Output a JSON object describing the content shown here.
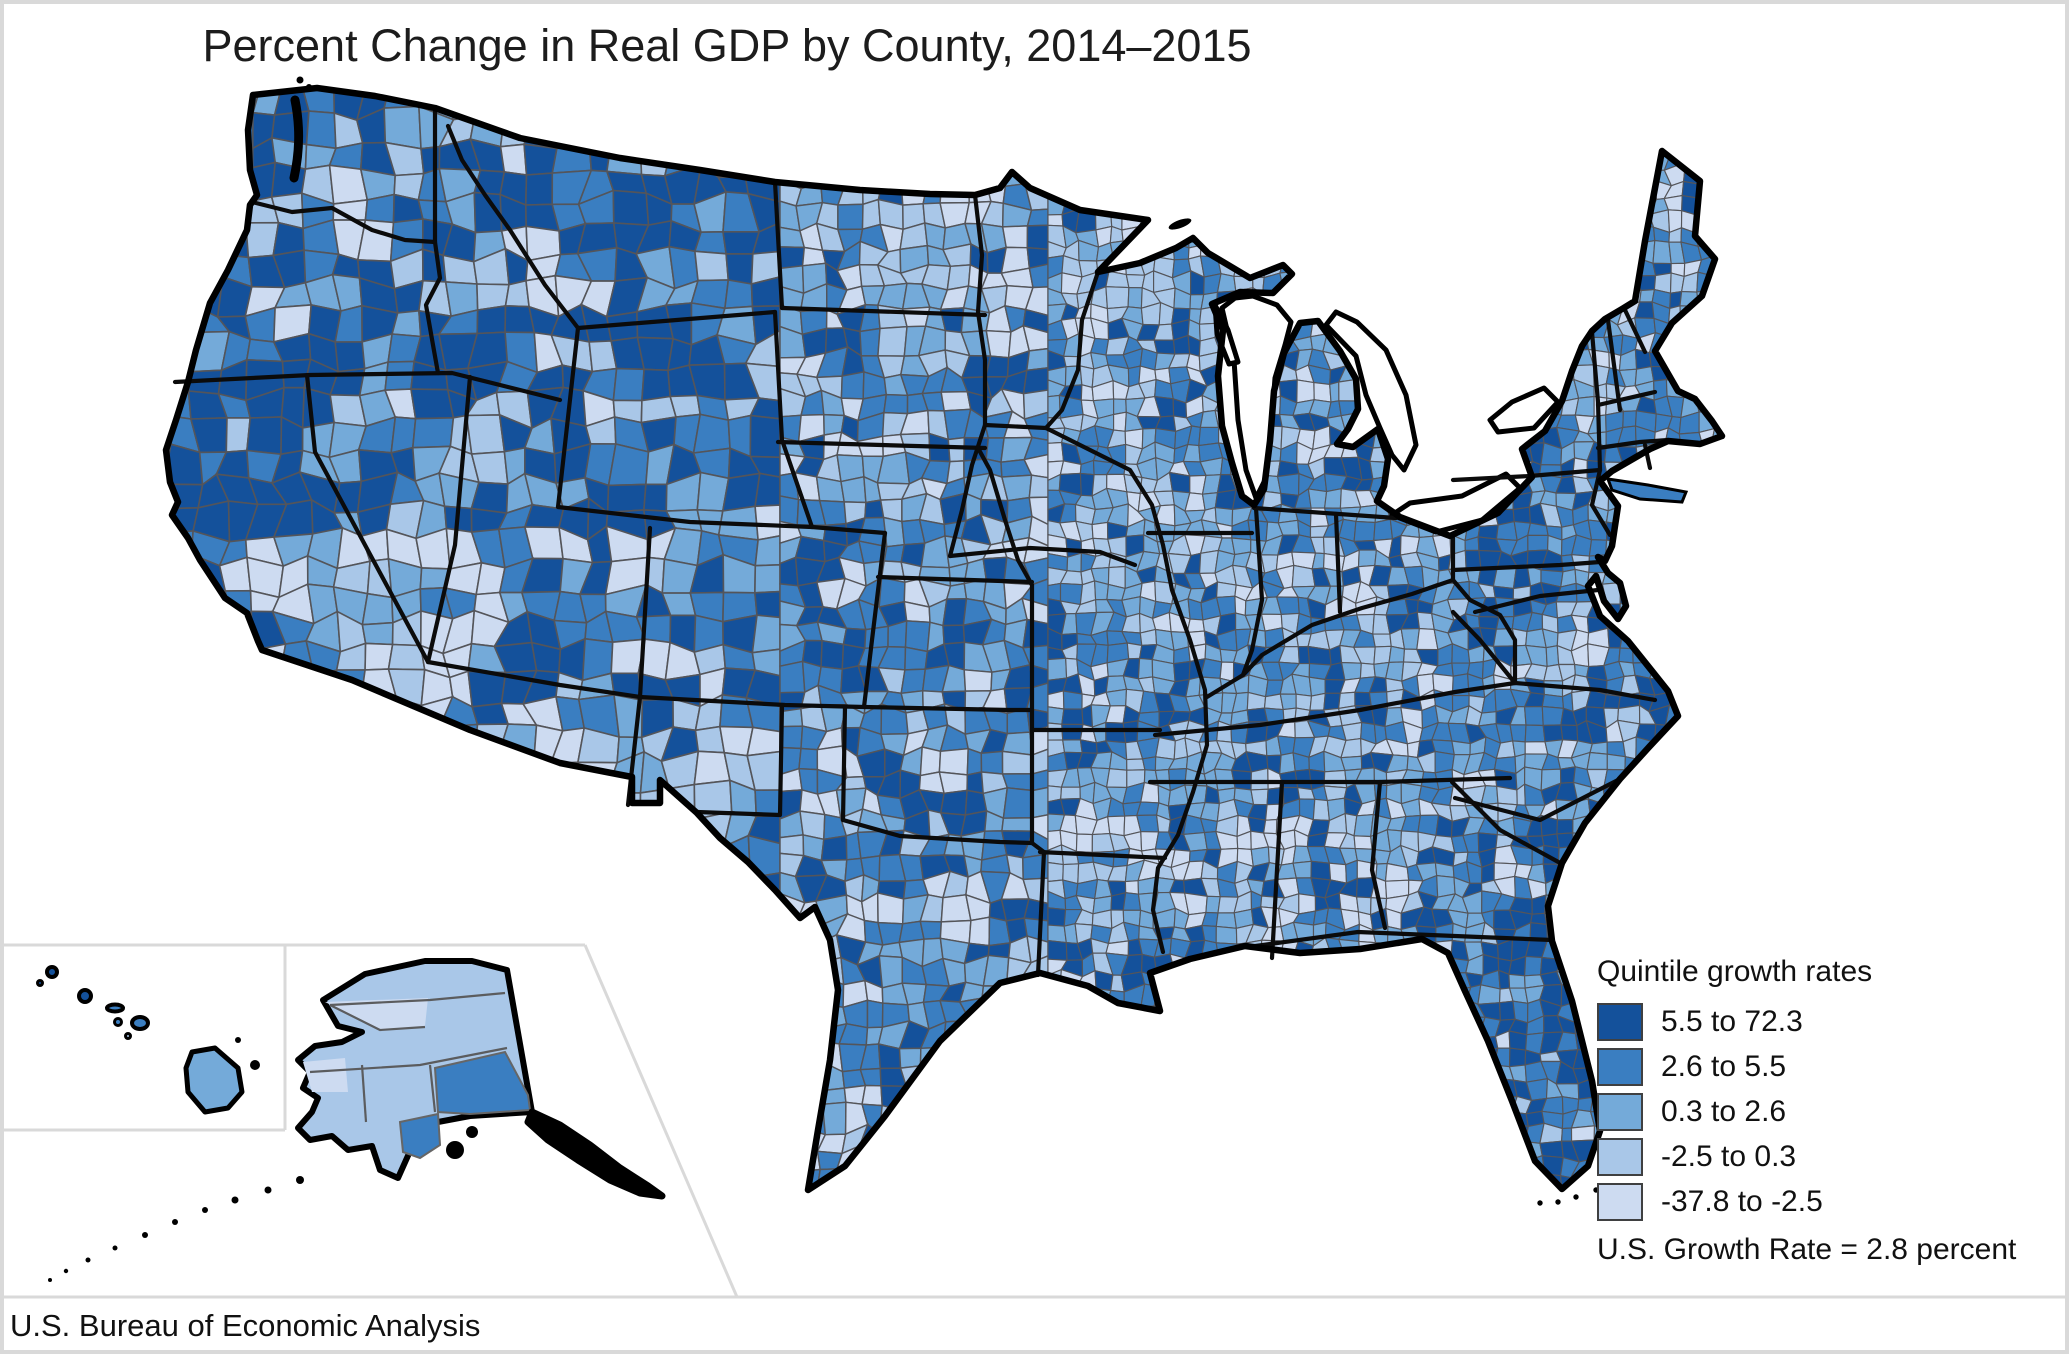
{
  "title": "Percent Change in Real GDP by County, 2014–2015",
  "attribution": "U.S. Bureau of Economic Analysis",
  "legend": {
    "title": "Quintile growth rates",
    "classes": [
      {
        "label": "5.5 to 72.3",
        "color": "#14519b"
      },
      {
        "label": "2.6 to 5.5",
        "color": "#3a7ec1"
      },
      {
        "label": "0.3 to 2.6",
        "color": "#74aad9"
      },
      {
        "label": "-2.5 to 0.3",
        "color": "#a9c7e8"
      },
      {
        "label": "-37.8 to -2.5",
        "color": "#cddbf1"
      }
    ],
    "footnote": "U.S. Growth Rate = 2.8 percent"
  },
  "map": {
    "national_outline_color": "#000000",
    "state_border_color": "#0b0b0b",
    "county_border_color": "#54555a",
    "inset_frame_color": "#d9d9d9",
    "water_color": "#ffffff"
  }
}
